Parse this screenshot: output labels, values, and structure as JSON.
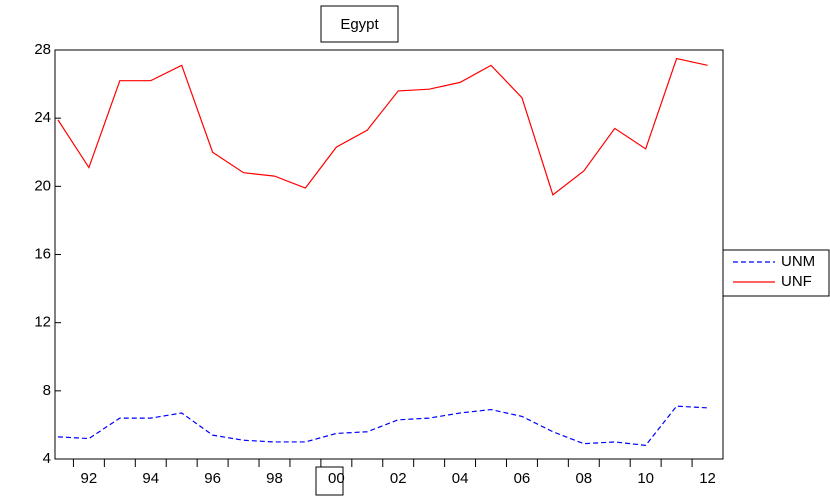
{
  "chart_data": {
    "type": "line",
    "title": "Egypt",
    "categories": [
      null,
      "92",
      null,
      "94",
      null,
      "96",
      null,
      "98",
      null,
      "00",
      null,
      "02",
      null,
      "04",
      null,
      "06",
      null,
      "08",
      null,
      "10",
      null,
      "12"
    ],
    "series": [
      {
        "name": "UNM",
        "color": "#0000ff",
        "dashed": true,
        "values": [
          5.3,
          5.2,
          6.4,
          6.4,
          6.7,
          5.4,
          5.1,
          5.0,
          5.0,
          5.5,
          5.6,
          6.3,
          6.4,
          6.7,
          6.9,
          6.5,
          5.6,
          4.9,
          5.0,
          4.8,
          7.1,
          7.0
        ]
      },
      {
        "name": "UNF",
        "color": "#ff0000",
        "dashed": false,
        "values": [
          23.9,
          21.1,
          26.2,
          26.2,
          27.1,
          22.0,
          20.8,
          20.6,
          19.9,
          22.3,
          23.3,
          25.6,
          25.7,
          26.1,
          27.1,
          25.2,
          19.5,
          20.9,
          23.4,
          22.2,
          27.5,
          27.1
        ]
      }
    ],
    "ylim": [
      4,
      28
    ],
    "yticks": [
      4,
      8,
      12,
      16,
      20,
      24,
      28
    ],
    "legend": "right"
  }
}
